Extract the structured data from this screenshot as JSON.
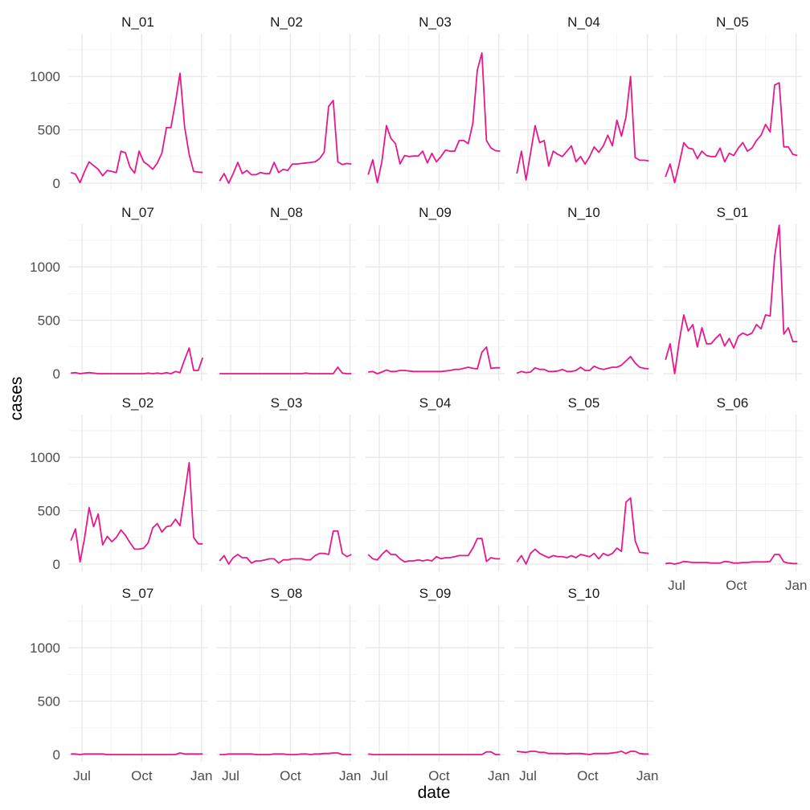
{
  "chart_data": {
    "type": "line",
    "layout": "faceted small multiples, 5 columns",
    "xlabel": "date",
    "ylabel": "cases",
    "x_ticks": [
      "Jul",
      "Oct",
      "Jan"
    ],
    "y_ticks": [
      0,
      500,
      1000
    ],
    "ylim": [
      0,
      1400
    ],
    "xlim": [
      "2020-06-10",
      "2021-01-10"
    ],
    "grid": true,
    "line_color": "#e7198a",
    "x": [
      "2020-06-14",
      "2020-06-21",
      "2020-06-28",
      "2020-07-05",
      "2020-07-12",
      "2020-07-19",
      "2020-07-26",
      "2020-08-02",
      "2020-08-09",
      "2020-08-16",
      "2020-08-23",
      "2020-08-30",
      "2020-09-06",
      "2020-09-13",
      "2020-09-20",
      "2020-09-27",
      "2020-10-04",
      "2020-10-11",
      "2020-10-18",
      "2020-10-25",
      "2020-11-01",
      "2020-11-08",
      "2020-11-15",
      "2020-11-22",
      "2020-11-29",
      "2020-12-06",
      "2020-12-13",
      "2020-12-20",
      "2020-12-27",
      "2021-01-03"
    ],
    "facets": [
      {
        "name": "N_01",
        "values": [
          100,
          85,
          5,
          110,
          200,
          165,
          130,
          70,
          120,
          110,
          100,
          300,
          285,
          150,
          95,
          300,
          200,
          170,
          130,
          190,
          280,
          520,
          520,
          760,
          1030,
          530,
          270,
          110,
          105,
          100
        ]
      },
      {
        "name": "N_02",
        "values": [
          20,
          90,
          0,
          90,
          195,
          90,
          120,
          80,
          80,
          100,
          90,
          90,
          195,
          100,
          130,
          120,
          180,
          180,
          185,
          190,
          195,
          200,
          230,
          290,
          720,
          775,
          200,
          175,
          185,
          180
        ]
      },
      {
        "name": "N_03",
        "values": [
          80,
          220,
          5,
          200,
          540,
          420,
          370,
          180,
          260,
          250,
          255,
          255,
          300,
          190,
          280,
          200,
          250,
          310,
          300,
          300,
          400,
          400,
          370,
          560,
          1060,
          1220,
          400,
          330,
          305,
          300
        ]
      },
      {
        "name": "N_04",
        "values": [
          90,
          300,
          30,
          280,
          540,
          380,
          400,
          160,
          300,
          270,
          250,
          300,
          350,
          200,
          250,
          180,
          250,
          340,
          290,
          350,
          450,
          350,
          590,
          440,
          620,
          1000,
          240,
          215,
          215,
          210
        ]
      },
      {
        "name": "N_05",
        "values": [
          60,
          180,
          5,
          180,
          380,
          330,
          320,
          230,
          300,
          260,
          250,
          250,
          330,
          200,
          280,
          260,
          330,
          380,
          300,
          330,
          400,
          450,
          550,
          480,
          920,
          940,
          340,
          340,
          270,
          260
        ]
      },
      {
        "name": "N_07",
        "values": [
          5,
          10,
          0,
          5,
          10,
          5,
          0,
          0,
          0,
          0,
          0,
          0,
          0,
          0,
          0,
          0,
          0,
          5,
          0,
          5,
          0,
          10,
          0,
          20,
          10,
          130,
          240,
          30,
          30,
          150
        ]
      },
      {
        "name": "N_08",
        "values": [
          0,
          0,
          0,
          0,
          0,
          0,
          0,
          0,
          0,
          0,
          0,
          0,
          0,
          0,
          0,
          0,
          0,
          0,
          0,
          5,
          0,
          0,
          0,
          0,
          0,
          0,
          60,
          5,
          0,
          0
        ]
      },
      {
        "name": "N_09",
        "values": [
          15,
          20,
          0,
          15,
          35,
          20,
          20,
          30,
          30,
          25,
          20,
          20,
          20,
          20,
          20,
          20,
          20,
          25,
          30,
          40,
          40,
          50,
          60,
          50,
          45,
          200,
          250,
          50,
          55,
          55
        ]
      },
      {
        "name": "N_10",
        "values": [
          5,
          20,
          10,
          15,
          55,
          40,
          40,
          20,
          20,
          25,
          40,
          20,
          20,
          30,
          60,
          30,
          30,
          70,
          50,
          40,
          50,
          60,
          60,
          80,
          120,
          160,
          100,
          60,
          50,
          45
        ]
      },
      {
        "name": "S_01",
        "values": [
          130,
          280,
          0,
          300,
          550,
          400,
          460,
          250,
          430,
          280,
          280,
          330,
          370,
          260,
          330,
          240,
          350,
          380,
          360,
          380,
          460,
          420,
          550,
          540,
          1100,
          1390,
          370,
          430,
          300,
          300
        ]
      },
      {
        "name": "S_02",
        "values": [
          220,
          330,
          20,
          240,
          530,
          350,
          470,
          180,
          260,
          210,
          250,
          320,
          270,
          200,
          140,
          140,
          150,
          200,
          340,
          380,
          300,
          350,
          360,
          420,
          360,
          650,
          950,
          250,
          190,
          190
        ]
      },
      {
        "name": "S_03",
        "values": [
          30,
          80,
          0,
          60,
          90,
          60,
          60,
          10,
          30,
          30,
          40,
          50,
          50,
          10,
          40,
          40,
          50,
          50,
          50,
          40,
          40,
          80,
          100,
          100,
          90,
          310,
          310,
          100,
          70,
          90
        ]
      },
      {
        "name": "S_04",
        "values": [
          90,
          50,
          40,
          90,
          130,
          90,
          90,
          50,
          20,
          30,
          30,
          40,
          30,
          40,
          30,
          70,
          50,
          60,
          60,
          70,
          80,
          80,
          80,
          150,
          240,
          240,
          25,
          60,
          50,
          50
        ]
      },
      {
        "name": "S_05",
        "values": [
          20,
          80,
          0,
          100,
          140,
          100,
          80,
          60,
          80,
          70,
          70,
          60,
          80,
          60,
          90,
          80,
          70,
          100,
          50,
          100,
          80,
          100,
          150,
          120,
          580,
          620,
          220,
          110,
          105,
          100
        ]
      },
      {
        "name": "S_06",
        "values": [
          5,
          10,
          0,
          10,
          25,
          20,
          15,
          15,
          15,
          15,
          10,
          10,
          10,
          25,
          20,
          10,
          10,
          15,
          15,
          20,
          20,
          20,
          20,
          25,
          90,
          90,
          20,
          10,
          5,
          5
        ]
      },
      {
        "name": "S_07",
        "values": [
          5,
          5,
          0,
          5,
          5,
          5,
          5,
          5,
          0,
          0,
          0,
          0,
          0,
          0,
          0,
          0,
          0,
          0,
          0,
          0,
          0,
          0,
          0,
          0,
          15,
          5,
          5,
          5,
          5,
          5
        ]
      },
      {
        "name": "S_08",
        "values": [
          0,
          0,
          5,
          5,
          5,
          5,
          5,
          5,
          0,
          0,
          0,
          0,
          5,
          5,
          5,
          0,
          0,
          0,
          5,
          5,
          0,
          5,
          5,
          10,
          10,
          15,
          15,
          0,
          0,
          0
        ]
      },
      {
        "name": "S_09",
        "values": [
          5,
          0,
          0,
          0,
          0,
          0,
          0,
          0,
          0,
          0,
          0,
          0,
          0,
          0,
          0,
          0,
          0,
          0,
          0,
          0,
          0,
          0,
          0,
          0,
          0,
          0,
          25,
          25,
          0,
          0
        ]
      },
      {
        "name": "S_10",
        "values": [
          30,
          25,
          20,
          30,
          30,
          20,
          20,
          10,
          10,
          10,
          10,
          5,
          10,
          10,
          10,
          5,
          0,
          10,
          10,
          10,
          10,
          15,
          20,
          30,
          10,
          30,
          30,
          10,
          5,
          5
        ]
      }
    ]
  }
}
